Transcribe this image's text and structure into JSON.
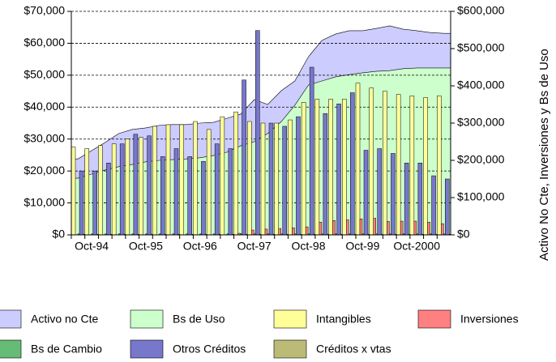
{
  "chart_data": {
    "type": "combo",
    "categories": [
      null,
      "Oct-94",
      null,
      null,
      null,
      "Oct-95",
      null,
      null,
      null,
      "Oct-96",
      null,
      null,
      null,
      "Oct-97",
      null,
      null,
      null,
      "Oct-98",
      null,
      null,
      null,
      "Oct-99",
      null,
      null,
      null,
      "Oct-2000",
      null,
      null
    ],
    "series": [
      {
        "name": "Activo no Cte",
        "color": "#ccccff",
        "kind": "area",
        "axis": "y2",
        "values": [
          204000,
          226000,
          248000,
          272000,
          283000,
          287000,
          294000,
          296000,
          296000,
          300000,
          302000,
          313000,
          324000,
          363000,
          350000,
          387000,
          413000,
          478000,
          522000,
          539000,
          548000,
          548000,
          554000,
          561000,
          552000,
          548000,
          543000,
          541000
        ]
      },
      {
        "name": "Bs de Uso",
        "color": "#ccffcc",
        "kind": "area",
        "axis": "y2",
        "values": [
          152000,
          163000,
          174000,
          183000,
          189000,
          196000,
          200000,
          202000,
          204000,
          207000,
          213000,
          222000,
          239000,
          250000,
          272000,
          304000,
          348000,
          402000,
          413000,
          424000,
          430000,
          435000,
          439000,
          441000,
          446000,
          448000,
          448000,
          448000
        ]
      },
      {
        "name": "Intangibles",
        "color": "#ffff99",
        "kind": "bar",
        "values": [
          27500,
          27000,
          28000,
          28500,
          30000,
          30500,
          34000,
          34500,
          34500,
          35500,
          33000,
          37000,
          38500,
          35500,
          35000,
          35000,
          36000,
          41500,
          42500,
          42500,
          42500,
          47500,
          46000,
          45000,
          44000,
          43500,
          43000,
          43500
        ]
      },
      {
        "name": "Inversiones",
        "color": "#ff8080",
        "kind": "bar",
        "values": [
          0,
          0,
          0,
          0,
          0,
          0,
          0,
          0,
          0,
          0,
          0,
          0,
          500,
          1500,
          1800,
          2000,
          2200,
          2500,
          4000,
          4500,
          4700,
          5000,
          5200,
          4200,
          4300,
          4300,
          4000,
          3500
        ]
      },
      {
        "name": "Bs de Cambio",
        "color": "#66bb77",
        "kind": "bar",
        "values": [
          300,
          300,
          300,
          300,
          300,
          300,
          300,
          300,
          300,
          300,
          300,
          300,
          300,
          300,
          300,
          300,
          300,
          300,
          300,
          300,
          300,
          300,
          300,
          300,
          300,
          300,
          300,
          300
        ]
      },
      {
        "name": "Otros Créditos",
        "color": "#7777cc",
        "kind": "bar",
        "values": [
          20000,
          20000,
          22500,
          28500,
          31500,
          31000,
          24500,
          27000,
          24500,
          23000,
          28500,
          27000,
          48500,
          64000,
          35000,
          34000,
          37000,
          52500,
          38000,
          41000,
          44500,
          26500,
          27000,
          25500,
          22500,
          22500,
          18500,
          17500
        ]
      },
      {
        "name": "Créditos x vtas",
        "color": "#bbbb77",
        "kind": "bar",
        "values": [
          200,
          200,
          200,
          200,
          200,
          200,
          200,
          200,
          200,
          200,
          200,
          200,
          200,
          200,
          200,
          200,
          200,
          200,
          200,
          200,
          200,
          200,
          200,
          200,
          200,
          200,
          200,
          200
        ]
      }
    ],
    "ylim": [
      0,
      70000
    ],
    "yticks": [
      {
        "value": 0,
        "label": "$0"
      },
      {
        "value": 10000,
        "label": "$10,000"
      },
      {
        "value": 20000,
        "label": "$20,000"
      },
      {
        "value": 30000,
        "label": "$30,000"
      },
      {
        "value": 40000,
        "label": "$40,000"
      },
      {
        "value": 50000,
        "label": "$50,000"
      },
      {
        "value": 60000,
        "label": "$60,000"
      },
      {
        "value": 70000,
        "label": "$70,000"
      }
    ],
    "y2lim": [
      0,
      600000
    ],
    "y2ticks": [
      {
        "value": 0,
        "label": "$0"
      },
      {
        "value": 100000,
        "label": "$100,000"
      },
      {
        "value": 200000,
        "label": "$200,000"
      },
      {
        "value": 300000,
        "label": "$300,000"
      },
      {
        "value": 400000,
        "label": "$400,000"
      },
      {
        "value": 500000,
        "label": "$500,000"
      },
      {
        "value": 600000,
        "label": "$600,000"
      }
    ],
    "y2label": "Activo No Cte, Inversiones y Bs de Uso",
    "grid": true
  }
}
